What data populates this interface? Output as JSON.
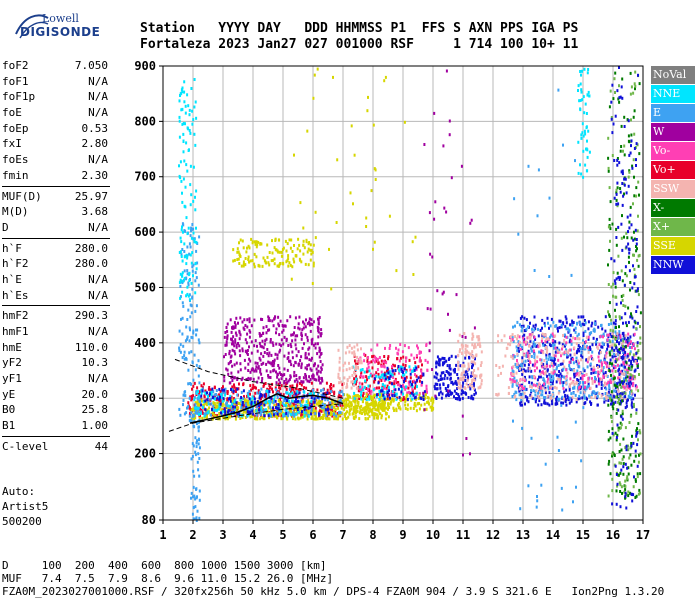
{
  "logo": {
    "line1": "Lowell",
    "line2": "DIGISONDE"
  },
  "header": {
    "line1": "Station   YYYY DAY   DDD HHMMSS P1  FFS S AXN PPS IGA PS",
    "line2": "Fortaleza 2023 Jan27 027 001000 RSF     1 714 100 10+ 11"
  },
  "params_groups": [
    [
      [
        "foF2",
        "7.050"
      ],
      [
        "foF1",
        "N/A"
      ],
      [
        "foF1p",
        "N/A"
      ],
      [
        "foE",
        "N/A"
      ],
      [
        "foEp",
        "0.53"
      ],
      [
        "fxI",
        "2.80"
      ],
      [
        "foEs",
        "N/A"
      ],
      [
        "fmin",
        "2.30"
      ]
    ],
    [
      [
        "MUF(D)",
        "25.97"
      ],
      [
        "M(D)",
        "3.68"
      ],
      [
        "D",
        "N/A"
      ]
    ],
    [
      [
        "h`F",
        "280.0"
      ],
      [
        "h`F2",
        "280.0"
      ],
      [
        "h`E",
        "N/A"
      ],
      [
        "h`Es",
        "N/A"
      ]
    ],
    [
      [
        "hmF2",
        "290.3"
      ],
      [
        "hmF1",
        "N/A"
      ],
      [
        "hmE",
        "110.0"
      ],
      [
        "yF2",
        "10.3"
      ],
      [
        "yF1",
        "N/A"
      ],
      [
        "yE",
        "20.0"
      ],
      [
        "B0",
        "25.8"
      ],
      [
        "B1",
        "1.00"
      ]
    ],
    [
      [
        "C-level",
        "44"
      ]
    ]
  ],
  "auto": {
    "line1": "Auto:",
    "line2": "Artist5",
    "line3": "500200"
  },
  "legend": [
    {
      "label": "NoVal",
      "color": "#7f7f7f"
    },
    {
      "label": "NNE",
      "color": "#00e5ff"
    },
    {
      "label": "E",
      "color": "#3ea2f2"
    },
    {
      "label": "W",
      "color": "#a0009f"
    },
    {
      "label": "Vo-",
      "color": "#ff3fb4"
    },
    {
      "label": "Vo+",
      "color": "#e8002a"
    },
    {
      "label": "SSW",
      "color": "#f4b4b0"
    },
    {
      "label": "X-",
      "color": "#007a00"
    },
    {
      "label": "X+",
      "color": "#6fb74a"
    },
    {
      "label": "SSE",
      "color": "#d6d600"
    },
    {
      "label": "NNW",
      "color": "#1010d8"
    }
  ],
  "chart_data": {
    "type": "scatter",
    "xlim": [
      1,
      17
    ],
    "ylim": [
      80,
      900
    ],
    "x_ticks": [
      "1",
      "2",
      "3",
      "4",
      "5",
      "6",
      "7",
      "8",
      "9",
      "10",
      "11",
      "12",
      "13",
      "14",
      "15",
      "16",
      "17"
    ],
    "y_ticks": [
      "80",
      "200",
      "300",
      "400",
      "500",
      "600",
      "700",
      "800",
      "900"
    ],
    "grid": true,
    "profile_line": [
      [
        1.9,
        255
      ],
      [
        2.5,
        262
      ],
      [
        3.0,
        268
      ],
      [
        3.5,
        275
      ],
      [
        4.0,
        285
      ],
      [
        4.5,
        300
      ],
      [
        4.8,
        308
      ],
      [
        5.2,
        300
      ],
      [
        5.6,
        303
      ],
      [
        6.0,
        305
      ],
      [
        6.5,
        300
      ],
      [
        7.0,
        290
      ]
    ],
    "dashed_upper": [
      [
        1.4,
        370
      ],
      [
        2.5,
        348
      ],
      [
        4.0,
        330
      ],
      [
        5.5,
        318
      ],
      [
        7.0,
        300
      ]
    ],
    "dashed_lower": [
      [
        1.2,
        240
      ],
      [
        2.0,
        255
      ],
      [
        3.5,
        268
      ],
      [
        5.0,
        280
      ],
      [
        7.0,
        290
      ]
    ],
    "echo_regions": [
      {
        "color": "#e8002a",
        "x": [
          1.8,
          7.0
        ],
        "y": [
          270,
          330
        ],
        "n": 420
      },
      {
        "color": "#d6d600",
        "x": [
          1.9,
          8.5
        ],
        "y": [
          265,
          300
        ],
        "n": 520
      },
      {
        "color": "#a0009f",
        "x": [
          3.0,
          6.3
        ],
        "y": [
          330,
          450
        ],
        "n": 420
      },
      {
        "color": "#3ea2f2",
        "x": [
          1.5,
          2.2
        ],
        "y": [
          260,
          620
        ],
        "n": 140
      },
      {
        "color": "#00e5ff",
        "x": [
          1.5,
          2.1
        ],
        "y": [
          480,
          880
        ],
        "n": 120
      },
      {
        "color": "#d6d600",
        "x": [
          3.3,
          6.0
        ],
        "y": [
          540,
          590
        ],
        "n": 140
      },
      {
        "color": "#1010d8",
        "x": [
          10.0,
          11.4
        ],
        "y": [
          300,
          380
        ],
        "n": 160
      },
      {
        "color": "#f4b4b0",
        "x": [
          10.8,
          11.6
        ],
        "y": [
          320,
          420
        ],
        "n": 110
      },
      {
        "color": "#1010d8",
        "x": [
          12.8,
          16.8
        ],
        "y": [
          290,
          450
        ],
        "n": 500
      },
      {
        "color": "#3ea2f2",
        "x": [
          12.6,
          16.6
        ],
        "y": [
          300,
          440
        ],
        "n": 320
      },
      {
        "color": "#ff3fb4",
        "x": [
          12.5,
          16.8
        ],
        "y": [
          320,
          420
        ],
        "n": 200
      },
      {
        "color": "#f4b4b0",
        "x": [
          12.0,
          16.8
        ],
        "y": [
          300,
          420
        ],
        "n": 220
      },
      {
        "color": "#007a00",
        "x": [
          15.8,
          16.9
        ],
        "y": [
          120,
          900
        ],
        "n": 180
      },
      {
        "color": "#6fb74a",
        "x": [
          15.8,
          16.9
        ],
        "y": [
          120,
          900
        ],
        "n": 160
      },
      {
        "color": "#1010d8",
        "x": [
          15.9,
          16.8
        ],
        "y": [
          100,
          900
        ],
        "n": 160
      },
      {
        "color": "#00e5ff",
        "x": [
          14.8,
          15.2
        ],
        "y": [
          700,
          900
        ],
        "n": 50
      },
      {
        "color": "#3ea2f2",
        "x": [
          1.9,
          2.2
        ],
        "y": [
          80,
          260
        ],
        "n": 50
      },
      {
        "color": "#e8002a",
        "x": [
          7.3,
          9.6
        ],
        "y": [
          300,
          380
        ],
        "n": 160
      },
      {
        "color": "#ff3fb4",
        "x": [
          7.5,
          9.8
        ],
        "y": [
          310,
          400
        ],
        "n": 120
      },
      {
        "color": "#d6d600",
        "x": [
          7.0,
          10.0
        ],
        "y": [
          280,
          310
        ],
        "n": 180
      },
      {
        "color": "#00e5ff",
        "x": [
          7.3,
          9.5
        ],
        "y": [
          300,
          360
        ],
        "n": 80
      },
      {
        "color": "#1010d8",
        "x": [
          8.0,
          9.7
        ],
        "y": [
          300,
          360
        ],
        "n": 60
      },
      {
        "color": "#f4b4b0",
        "x": [
          6.8,
          7.6
        ],
        "y": [
          320,
          400
        ],
        "n": 60
      },
      {
        "color": "#3ea2f2",
        "x": [
          2.0,
          7.0
        ],
        "y": [
          270,
          320
        ],
        "n": 200
      },
      {
        "color": "#00e5ff",
        "x": [
          2.0,
          6.0
        ],
        "y": [
          270,
          320
        ],
        "n": 120
      },
      {
        "color": "#1010d8",
        "x": [
          2.2,
          6.5
        ],
        "y": [
          270,
          320
        ],
        "n": 120
      },
      {
        "color": "#a0009f",
        "x": [
          9.6,
          11.4
        ],
        "y": [
          200,
          900
        ],
        "n": 40
      },
      {
        "color": "#3ea2f2",
        "x": [
          12.4,
          15.0
        ],
        "y": [
          100,
          900
        ],
        "n": 40
      },
      {
        "color": "#d6d600",
        "x": [
          5.0,
          9.5
        ],
        "y": [
          500,
          900
        ],
        "n": 40
      }
    ]
  },
  "footer": {
    "line1": "D     100  200  400  600  800 1000 1500 3000 [km]",
    "line2": "MUF   7.4  7.5  7.9  8.6  9.6 11.0 15.2 26.0 [MHz]",
    "line3": "FZA0M_2023027001000.RSF / 320fx256h 50 kHz 5.0 km / DPS-4 FZA0M 904 / 3.9 S 321.6 E   Ion2Png 1.3.20"
  }
}
